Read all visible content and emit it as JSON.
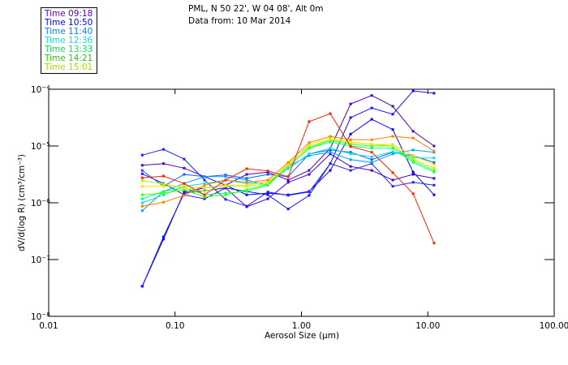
{
  "chart_data": {
    "type": "line",
    "title": "PML, N 50 22', W 04 08', Alt 0m",
    "subtitle": "Data from: 10 Mar 2014",
    "xlabel": "Aerosol Size (μm)",
    "ylabel": "dV/d(log R) (cm³/cm⁻³)",
    "xscale": "log",
    "yscale": "log",
    "xlim": [
      0.01,
      100
    ],
    "ylim": [
      1e-08,
      0.0001
    ],
    "xticks": [
      {
        "v": 0.01,
        "label": "0.01"
      },
      {
        "v": 0.1,
        "label": "0.10"
      },
      {
        "v": 1,
        "label": "1.00"
      },
      {
        "v": 10,
        "label": "10.00"
      },
      {
        "v": 100,
        "label": "100.00"
      }
    ],
    "yticks": [
      {
        "exp": -4,
        "label": "10",
        "sup": "−4"
      },
      {
        "exp": -5,
        "label": "10",
        "sup": "−5"
      },
      {
        "exp": -6,
        "label": "10",
        "sup": "−6"
      },
      {
        "exp": -7,
        "label": "10",
        "sup": "−7"
      },
      {
        "exp": -8,
        "label": "10",
        "sup": "−8"
      }
    ],
    "legend_placement": "top-left-outside",
    "legend": [
      {
        "label": "Time 09:18",
        "color": "#6000b0"
      },
      {
        "label": "Time 10:50",
        "color": "#0000ff"
      },
      {
        "label": "Time 11:40",
        "color": "#0080ff"
      },
      {
        "label": "Time 12:36",
        "color": "#00e0e0"
      },
      {
        "label": "Time 13:33",
        "color": "#00e060"
      },
      {
        "label": "Time 14:21",
        "color": "#20d000"
      },
      {
        "label": "Time 15:01",
        "color": "#a0e000"
      }
    ],
    "x": [
      0.055,
      0.081,
      0.118,
      0.171,
      0.251,
      0.369,
      0.542,
      0.785,
      1.15,
      1.69,
      2.45,
      3.6,
      5.28,
      7.65,
      11.2
    ],
    "series": [
      {
        "color": "#5000b0",
        "y_log10": [
          -5.34,
          -5.31,
          -5.39,
          -5.54,
          -5.69,
          -5.5,
          -5.46,
          -5.6,
          -5.43,
          -5.04,
          -4.26,
          -4.11,
          -4.3,
          -4.74,
          -5.0
        ]
      },
      {
        "color": "#0000ff",
        "y_log10": [
          -7.47,
          -6.64,
          -5.81,
          -5.74,
          -5.69,
          -5.86,
          -5.83,
          -5.86,
          -5.8,
          -5.43,
          -4.79,
          -4.53,
          -4.71,
          -5.46,
          -5.86
        ]
      },
      {
        "color": "#1010ff",
        "y_log10": [
          -7.47,
          -6.6,
          -5.83,
          -5.79,
          -5.74,
          -5.8,
          -5.86,
          -6.11,
          -5.87,
          -5.31,
          -4.5,
          -4.33,
          -4.44,
          -4.03,
          -4.07
        ]
      },
      {
        "color": "#2020ff",
        "y_log10": [
          -5.16,
          -5.06,
          -5.23,
          -5.6,
          -5.94,
          -6.06,
          -5.81,
          -5.87,
          -5.81,
          -5.31,
          -5.43,
          -5.31,
          -5.71,
          -5.64,
          -5.69
        ]
      },
      {
        "color": "#4000d0",
        "y_log10": [
          -5.49,
          -5.66,
          -5.86,
          -5.93,
          -5.74,
          -6.07,
          -5.93,
          -5.64,
          -5.5,
          -5.14,
          -5.36,
          -5.43,
          -5.6,
          -5.5,
          -5.57
        ]
      },
      {
        "color": "#0060ff",
        "y_log10": [
          -5.43,
          -5.71,
          -5.5,
          -5.54,
          -5.51,
          -5.57,
          -5.5,
          -5.54,
          -5.14,
          -5.07,
          -5.11,
          -5.24,
          -5.11,
          -5.17,
          -5.29
        ]
      },
      {
        "color": "#00a0ff",
        "y_log10": [
          -6.14,
          -5.8,
          -5.66,
          -5.54,
          -5.54,
          -5.6,
          -5.69,
          -5.36,
          -5.17,
          -5.11,
          -5.24,
          -5.29,
          -5.14,
          -5.07,
          -5.11
        ]
      },
      {
        "color": "#00e0e0",
        "y_log10": [
          -6.0,
          -5.86,
          -5.71,
          -5.66,
          -5.6,
          -5.66,
          -5.64,
          -5.4,
          -5.14,
          -5.04,
          -5.14,
          -5.19,
          -5.1,
          -5.21,
          -5.21
        ]
      },
      {
        "color": "#00ff80",
        "y_log10": [
          -5.93,
          -5.8,
          -5.73,
          -5.86,
          -5.83,
          -5.8,
          -5.69,
          -5.36,
          -5.04,
          -4.93,
          -5.0,
          -5.04,
          -5.04,
          -5.29,
          -5.46
        ]
      },
      {
        "color": "#40ff00",
        "y_log10": [
          -5.86,
          -5.83,
          -5.77,
          -5.9,
          -5.86,
          -5.77,
          -5.67,
          -5.36,
          -5.03,
          -4.9,
          -4.97,
          -5.0,
          -5.0,
          -5.26,
          -5.43
        ]
      },
      {
        "color": "#a0ff00",
        "y_log10": [
          -5.61,
          -5.67,
          -5.74,
          -5.8,
          -5.71,
          -5.71,
          -5.66,
          -5.31,
          -5.0,
          -4.89,
          -4.94,
          -4.97,
          -5.0,
          -5.23,
          -5.39
        ]
      },
      {
        "color": "#ffe000",
        "y_log10": [
          -5.71,
          -5.71,
          -5.71,
          -5.74,
          -5.69,
          -5.69,
          -5.63,
          -5.34,
          -4.97,
          -4.86,
          -4.93,
          -4.97,
          -4.97,
          -5.17,
          -5.33
        ]
      },
      {
        "color": "#ff8000",
        "y_log10": [
          -6.06,
          -5.99,
          -5.87,
          -5.69,
          -5.6,
          -5.64,
          -5.6,
          -5.29,
          -4.94,
          -4.83,
          -4.89,
          -4.89,
          -4.83,
          -4.86,
          -5.09
        ]
      },
      {
        "color": "#ff2000",
        "y_log10": [
          -5.56,
          -5.53,
          -5.66,
          -5.86,
          -5.6,
          -5.4,
          -5.44,
          -5.54,
          -4.57,
          -4.43,
          -5.01,
          -5.11,
          -5.47,
          -5.84,
          -6.71
        ]
      }
    ]
  }
}
